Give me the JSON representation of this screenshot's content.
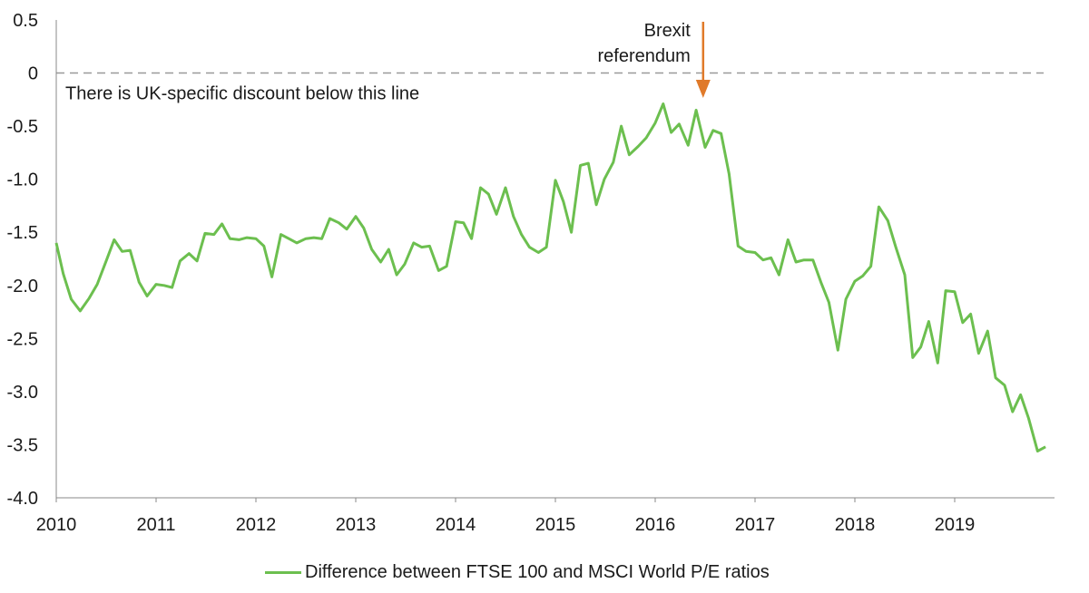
{
  "chart_data": {
    "type": "line",
    "title": "",
    "xlabel": "",
    "ylabel": "",
    "ylim": [
      -4.0,
      0.5
    ],
    "xlim": [
      2010,
      2020
    ],
    "y_ticks": [
      0.5,
      0,
      -0.5,
      -1.0,
      -1.5,
      -2.0,
      -2.5,
      -3.0,
      -3.5,
      -4.0
    ],
    "y_tick_labels": [
      "0.5",
      "0",
      "-0.5",
      "-1.0",
      "-1.5",
      "-2.0",
      "-2.5",
      "-3.0",
      "-3.5",
      "-4.0"
    ],
    "x_ticks": [
      2010,
      2011,
      2012,
      2013,
      2014,
      2015,
      2016,
      2017,
      2018,
      2019
    ],
    "x_tick_labels": [
      "2010",
      "2011",
      "2012",
      "2013",
      "2014",
      "2015",
      "2016",
      "2017",
      "2018",
      "2019"
    ],
    "grid": false,
    "legend_position": "bottom",
    "reference_line": {
      "y": 0,
      "style": "dashed",
      "label": "There is UK-specific discount below this line"
    },
    "event_marker": {
      "x": 2016.48,
      "label_lines": [
        "Brexit",
        "referendum"
      ]
    },
    "series": [
      {
        "name": "Difference between FTSE 100 and MSCI World P/E ratios",
        "color": "#6cbf4f",
        "x": [
          2010.0,
          2010.07,
          2010.15,
          2010.24,
          2010.33,
          2010.41,
          2010.5,
          2010.58,
          2010.66,
          2010.74,
          2010.83,
          2010.91,
          2011.0,
          2011.08,
          2011.16,
          2011.24,
          2011.33,
          2011.41,
          2011.49,
          2011.58,
          2011.66,
          2011.74,
          2011.83,
          2011.91,
          2012.0,
          2012.08,
          2012.16,
          2012.25,
          2012.33,
          2012.41,
          2012.5,
          2012.58,
          2012.66,
          2012.74,
          2012.83,
          2012.91,
          2013.0,
          2013.08,
          2013.16,
          2013.25,
          2013.33,
          2013.41,
          2013.49,
          2013.58,
          2013.66,
          2013.74,
          2013.83,
          2013.91,
          2014.0,
          2014.08,
          2014.16,
          2014.25,
          2014.33,
          2014.41,
          2014.5,
          2014.58,
          2014.66,
          2014.74,
          2014.83,
          2014.91,
          2015.0,
          2015.08,
          2015.16,
          2015.25,
          2015.33,
          2015.41,
          2015.49,
          2015.58,
          2015.66,
          2015.74,
          2015.83,
          2015.91,
          2016.0,
          2016.08,
          2016.16,
          2016.24,
          2016.33,
          2016.41,
          2016.5,
          2016.58,
          2016.66,
          2016.74,
          2016.83,
          2016.91,
          2017.0,
          2017.08,
          2017.16,
          2017.24,
          2017.33,
          2017.41,
          2017.49,
          2017.58,
          2017.66,
          2017.74,
          2017.83,
          2017.91,
          2018.0,
          2018.08,
          2018.16,
          2018.24,
          2018.33,
          2018.41,
          2018.5,
          2018.58,
          2018.66,
          2018.74,
          2018.83,
          2018.91,
          2019.0,
          2019.08,
          2019.16,
          2019.24,
          2019.33,
          2019.41,
          2019.5,
          2019.58,
          2019.66,
          2019.74,
          2019.83,
          2019.91
        ],
        "values": [
          -1.6,
          -1.89,
          -2.13,
          -2.24,
          -2.12,
          -1.99,
          -1.77,
          -1.57,
          -1.68,
          -1.67,
          -1.97,
          -2.1,
          -1.99,
          -2.0,
          -2.02,
          -1.77,
          -1.7,
          -1.77,
          -1.51,
          -1.52,
          -1.42,
          -1.56,
          -1.57,
          -1.55,
          -1.56,
          -1.63,
          -1.92,
          -1.52,
          -1.56,
          -1.6,
          -1.56,
          -1.55,
          -1.56,
          -1.37,
          -1.41,
          -1.47,
          -1.35,
          -1.46,
          -1.66,
          -1.78,
          -1.66,
          -1.9,
          -1.8,
          -1.6,
          -1.64,
          -1.63,
          -1.86,
          -1.82,
          -1.4,
          -1.41,
          -1.56,
          -1.08,
          -1.14,
          -1.33,
          -1.08,
          -1.35,
          -1.52,
          -1.64,
          -1.69,
          -1.64,
          -1.01,
          -1.21,
          -1.5,
          -0.87,
          -0.85,
          -1.24,
          -1.0,
          -0.84,
          -0.5,
          -0.77,
          -0.69,
          -0.61,
          -0.47,
          -0.29,
          -0.56,
          -0.48,
          -0.68,
          -0.35,
          -0.7,
          -0.54,
          -0.57,
          -0.95,
          -1.63,
          -1.68,
          -1.69,
          -1.76,
          -1.74,
          -1.9,
          -1.57,
          -1.78,
          -1.76,
          -1.76,
          -1.97,
          -2.16,
          -2.61,
          -2.13,
          -1.96,
          -1.91,
          -1.82,
          -1.26,
          -1.39,
          -1.64,
          -1.9,
          -2.68,
          -2.58,
          -2.34,
          -2.73,
          -2.05,
          -2.06,
          -2.35,
          -2.27,
          -2.64,
          -2.43,
          -2.87,
          -2.94,
          -3.19,
          -3.03,
          -3.25,
          -3.56,
          -3.52
        ]
      }
    ]
  }
}
